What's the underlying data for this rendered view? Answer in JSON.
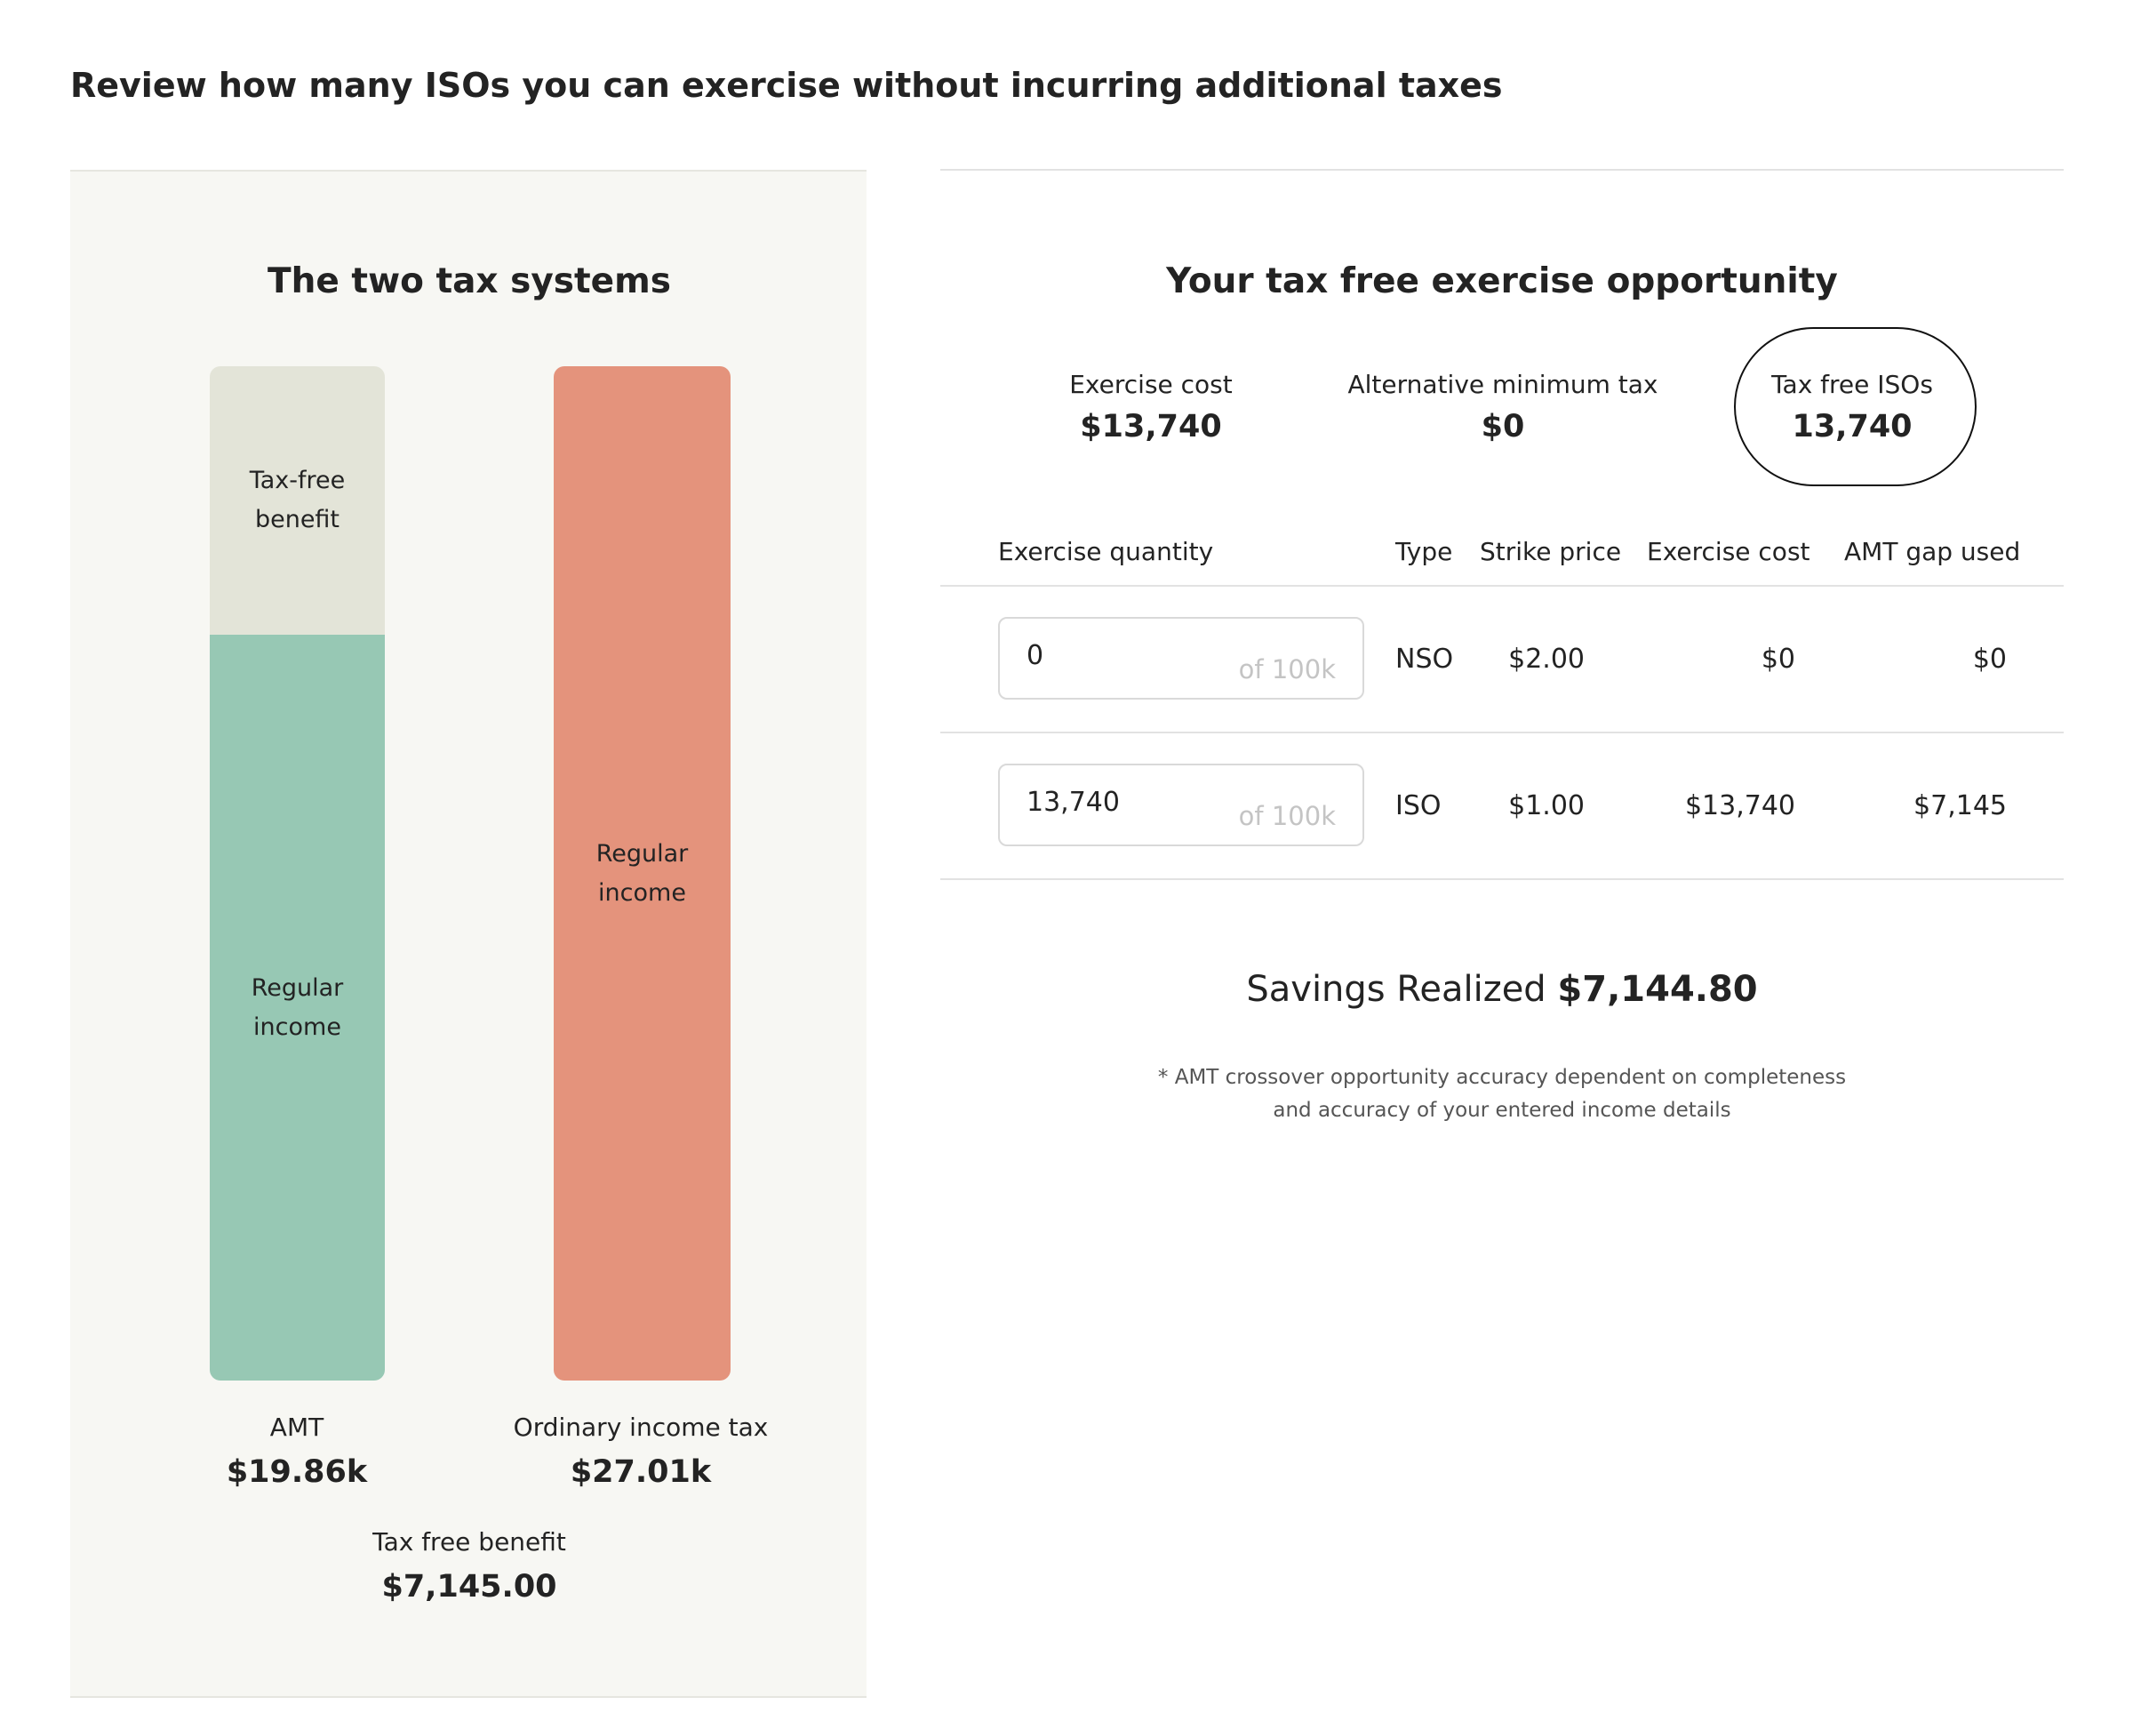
{
  "header": {
    "title": "Review how many ISOs you can exercise without incurring additional taxes"
  },
  "tax_systems": {
    "title": "The two tax systems",
    "amt": {
      "name": "AMT",
      "value": 19860,
      "value_label": "$19.86k",
      "segment_labels": {
        "tax_free": "Tax-free benefit",
        "regular": "Regular income"
      }
    },
    "ordinary": {
      "name": "Ordinary income tax",
      "value": 27010,
      "value_label": "$27.01k",
      "segment_label": "Regular income"
    },
    "benefit": {
      "name": "Tax free benefit",
      "value": 7145,
      "value_label": "$7,145.00"
    }
  },
  "opportunity": {
    "title": "Your tax free exercise opportunity",
    "stats": [
      {
        "label": "Exercise cost",
        "value": "$13,740"
      },
      {
        "label": "Alternative minimum tax",
        "value": "$0"
      },
      {
        "label": "Tax free ISOs",
        "value": "13,740"
      }
    ],
    "table": {
      "headers": [
        "Exercise quantity",
        "Type",
        "Strike price",
        "Exercise cost",
        "AMT gap used"
      ],
      "rows": [
        {
          "quantity": "0",
          "of": "of 100k",
          "type": "NSO",
          "strike": "$2.00",
          "cost": "$0",
          "gap": "$0"
        },
        {
          "quantity": "13,740",
          "of": "of 100k",
          "type": "ISO",
          "strike": "$1.00",
          "cost": "$13,740",
          "gap": "$7,145"
        }
      ]
    },
    "savings": {
      "label": "Savings Realized",
      "value": "$7,144.80"
    },
    "footnote": "* AMT crossover opportunity accuracy dependent on completeness and accuracy of your entered income details"
  }
}
